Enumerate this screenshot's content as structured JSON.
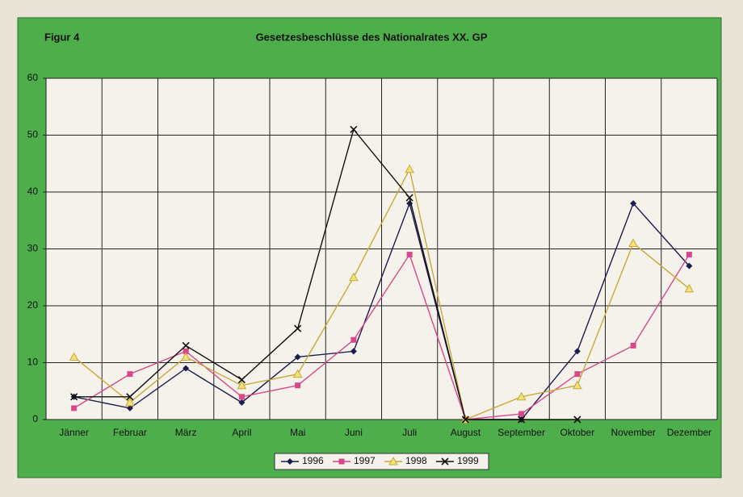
{
  "chart_data": {
    "type": "line",
    "label": "Figur 4",
    "title": "Gesetzesbeschlüsse des Nationalrates XX. GP",
    "categories": [
      "Jänner",
      "Februar",
      "März",
      "April",
      "Mai",
      "Juni",
      "Juli",
      "August",
      "September",
      "Oktober",
      "November",
      "Dezember"
    ],
    "series": [
      {
        "name": "1996",
        "color": "#1c1c4e",
        "marker": "diamond",
        "values": [
          4,
          2,
          9,
          3,
          11,
          12,
          38,
          0,
          0,
          12,
          38,
          27
        ]
      },
      {
        "name": "1997",
        "color": "#d8478a",
        "marker": "square",
        "values": [
          2,
          8,
          12,
          4,
          6,
          14,
          29,
          0,
          1,
          8,
          13,
          29
        ]
      },
      {
        "name": "1998",
        "color": "#c9a93a",
        "marker": "triangle",
        "values": [
          11,
          3,
          11,
          6,
          8,
          25,
          44,
          0,
          4,
          6,
          31,
          23
        ]
      },
      {
        "name": "1999",
        "color": "#111111",
        "marker": "x",
        "values": [
          4,
          4,
          13,
          7,
          16,
          51,
          39,
          0,
          0,
          0,
          null,
          null
        ]
      }
    ],
    "ylim": [
      0,
      60
    ],
    "yticks": [
      0,
      10,
      20,
      30,
      40,
      50,
      60
    ],
    "grid": true
  }
}
